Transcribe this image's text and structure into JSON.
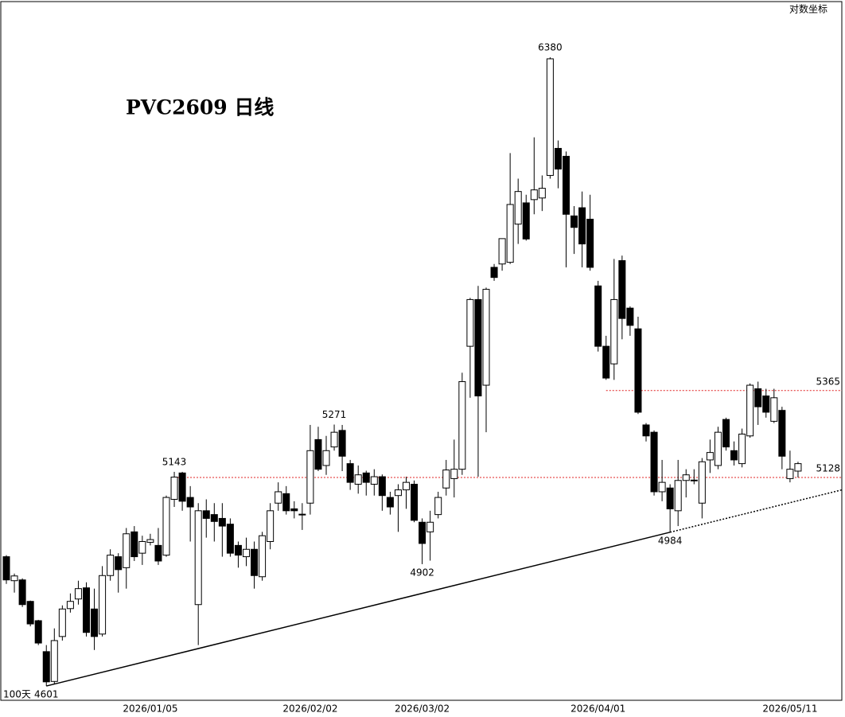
{
  "chart_data": {
    "type": "candlestick",
    "title": "PVC2609 日线",
    "scale_note": "对数坐标",
    "period_label": "100天",
    "log_scale": true,
    "ylim": [
      4567,
      6573
    ],
    "up_color": "#ffffff",
    "down_color": "#000000",
    "categories": [
      null,
      null,
      null,
      null,
      null,
      null,
      null,
      null,
      null,
      null,
      null,
      null,
      null,
      null,
      null,
      null,
      null,
      null,
      "2026/01/05",
      null,
      null,
      null,
      null,
      null,
      null,
      null,
      null,
      null,
      null,
      null,
      null,
      null,
      null,
      null,
      null,
      null,
      null,
      null,
      "2026/02/02",
      null,
      null,
      null,
      null,
      null,
      null,
      null,
      null,
      null,
      null,
      null,
      null,
      null,
      "2026/03/02",
      null,
      null,
      null,
      null,
      null,
      null,
      null,
      null,
      null,
      null,
      null,
      null,
      null,
      null,
      null,
      null,
      null,
      null,
      null,
      null,
      null,
      "2026/04/01",
      null,
      null,
      null,
      null,
      null,
      null,
      null,
      null,
      null,
      null,
      null,
      null,
      null,
      null,
      null,
      null,
      null,
      null,
      null,
      null,
      null,
      null,
      null,
      "2026/05/11",
      null
    ],
    "open": [
      4921,
      4860,
      4862,
      4808,
      4760,
      4684,
      4612,
      4721,
      4790,
      4814,
      4842,
      4789,
      4727,
      4873,
      4921,
      4893,
      4985,
      4930,
      4958,
      4950,
      4925,
      5070,
      5140,
      5075,
      4800,
      5040,
      5030,
      5020,
      5005,
      4950,
      4921,
      4940,
      4870,
      4960,
      5060,
      5085,
      5045,
      5031,
      5060,
      5230,
      5160,
      5210,
      5255,
      5165,
      5110,
      5140,
      5110,
      5130,
      5075,
      5080,
      5095,
      5110,
      5010,
      4985,
      5030,
      5100,
      5125,
      5150,
      5490,
      5625,
      5380,
      5720,
      5730,
      5735,
      5850,
      5915,
      5925,
      5930,
      6000,
      6085,
      6060,
      5875,
      5900,
      5865,
      5665,
      5490,
      5440,
      5740,
      5600,
      5540,
      5270,
      5250,
      5090,
      5100,
      5040,
      5120,
      5121,
      5060,
      5175,
      5160,
      5285,
      5200,
      5165,
      5240,
      5370,
      5350,
      5280,
      5310,
      5125,
      5145
    ],
    "high": [
      4925,
      4878,
      4866,
      4810,
      4762,
      4700,
      4741,
      4798,
      4828,
      4860,
      4856,
      4840,
      4897,
      4940,
      4930,
      4995,
      5000,
      4975,
      4980,
      4995,
      5080,
      5143,
      5143,
      5105,
      5060,
      5070,
      5060,
      5060,
      5020,
      4960,
      4970,
      4960,
      4985,
      5060,
      5115,
      5105,
      5065,
      5060,
      5270,
      5265,
      5240,
      5271,
      5270,
      5175,
      5160,
      5146,
      5150,
      5136,
      5090,
      5110,
      5130,
      5120,
      5020,
      5040,
      5090,
      5175,
      5230,
      5415,
      5630,
      5665,
      5660,
      5730,
      5806,
      6070,
      5990,
      5940,
      6120,
      6000,
      6380,
      6110,
      6075,
      5905,
      5950,
      5940,
      5680,
      5520,
      5745,
      5755,
      5605,
      5575,
      5275,
      5255,
      5175,
      5110,
      5175,
      5150,
      5150,
      5180,
      5230,
      5265,
      5290,
      5225,
      5260,
      5385,
      5390,
      5370,
      5370,
      5320,
      5200,
      5170
    ],
    "low": [
      4852,
      4830,
      4794,
      4746,
      4700,
      4601,
      4606,
      4711,
      4780,
      4800,
      4721,
      4688,
      4721,
      4860,
      4830,
      4840,
      4910,
      4900,
      4950,
      4900,
      4921,
      5050,
      5040,
      4960,
      4700,
      4970,
      4960,
      4921,
      4921,
      4893,
      4897,
      4840,
      4860,
      4940,
      5040,
      5030,
      5020,
      4990,
      5030,
      5145,
      5135,
      5200,
      5145,
      5095,
      5085,
      5080,
      5080,
      5040,
      5030,
      4985,
      5045,
      5010,
      4902,
      4911,
      5020,
      5080,
      5075,
      5135,
      5345,
      5130,
      5250,
      5680,
      5710,
      5730,
      5790,
      5800,
      5880,
      5890,
      5990,
      5960,
      5720,
      5760,
      5720,
      5710,
      5475,
      5395,
      5395,
      5510,
      5520,
      5300,
      5225,
      5080,
      5065,
      4984,
      5000,
      5075,
      5110,
      5020,
      5140,
      5150,
      5200,
      5160,
      5155,
      5235,
      5270,
      5290,
      5275,
      5150,
      5115,
      5128
    ],
    "close": [
      4862,
      4872,
      4800,
      4752,
      4705,
      4611,
      4711,
      4789,
      4808,
      4840,
      4731,
      4721,
      4873,
      4925,
      4888,
      4980,
      4921,
      4960,
      4965,
      4910,
      5075,
      5129,
      5065,
      5050,
      5040,
      5020,
      5012,
      5000,
      4930,
      4925,
      4940,
      4873,
      4975,
      5040,
      5090,
      5040,
      5040,
      5029,
      5200,
      5150,
      5200,
      5250,
      5185,
      5115,
      5135,
      5115,
      5130,
      5080,
      5050,
      5095,
      5115,
      5015,
      4955,
      5010,
      5075,
      5148,
      5150,
      5390,
      5625,
      5350,
      5655,
      5690,
      5806,
      5910,
      5950,
      5805,
      5955,
      5960,
      6375,
      6020,
      5880,
      5840,
      5790,
      5720,
      5490,
      5400,
      5625,
      5570,
      5550,
      5305,
      5240,
      5090,
      5115,
      5045,
      5120,
      5135,
      5119,
      5170,
      5195,
      5250,
      5210,
      5175,
      5245,
      5380,
      5320,
      5305,
      5345,
      5185,
      5150,
      5165
    ],
    "high_labels": [
      21,
      41,
      68
    ],
    "low_labels": [
      5,
      52,
      83
    ],
    "levels": [
      {
        "value": 5365,
        "color": "#e02020"
      },
      {
        "value": 5128,
        "color": "#e02020"
      }
    ]
  }
}
